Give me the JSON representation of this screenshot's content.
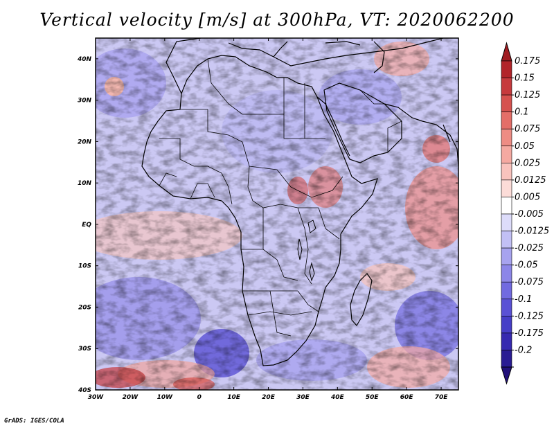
{
  "title": "Vertical velocity [m/s] at 300hPa, VT: 2020062200",
  "footer": "GrADS: IGES/COLA",
  "map": {
    "lat_labels": [
      "40N",
      "30N",
      "20N",
      "10N",
      "EQ",
      "10S",
      "20S",
      "30S",
      "40S"
    ],
    "lon_labels": [
      "30W",
      "20W",
      "10W",
      "0",
      "10E",
      "20E",
      "30E",
      "40E",
      "50E",
      "60E",
      "70E"
    ],
    "lon_range": [
      -30,
      75
    ],
    "lat_range": [
      -40,
      45
    ]
  },
  "colorbar": {
    "labels": [
      "0.175",
      "0.15",
      "0.125",
      "0.1",
      "0.075",
      "0.05",
      "0.025",
      "0.0125",
      "0.005",
      "-0.005",
      "-0.0125",
      "-0.025",
      "-0.05",
      "-0.075",
      "-0.1",
      "-0.125",
      "-0.175",
      "-0.2"
    ],
    "colors": [
      "#b2242a",
      "#c63a3d",
      "#d6524f",
      "#e46e68",
      "#ee8c84",
      "#f5a9a1",
      "#f9c3bd",
      "#fcdcd8",
      "#ffffff",
      "#dddcfa",
      "#c2c0f5",
      "#a7a3ef",
      "#8c86e8",
      "#716ae0",
      "#5a51d5",
      "#463ec7",
      "#3629b0",
      "#2a1c93"
    ],
    "top_cap_color": "#a01c22",
    "bottom_cap_color": "#22117a"
  },
  "colors": {
    "background_field": "#c9c6f2",
    "coastline": "#000000"
  }
}
